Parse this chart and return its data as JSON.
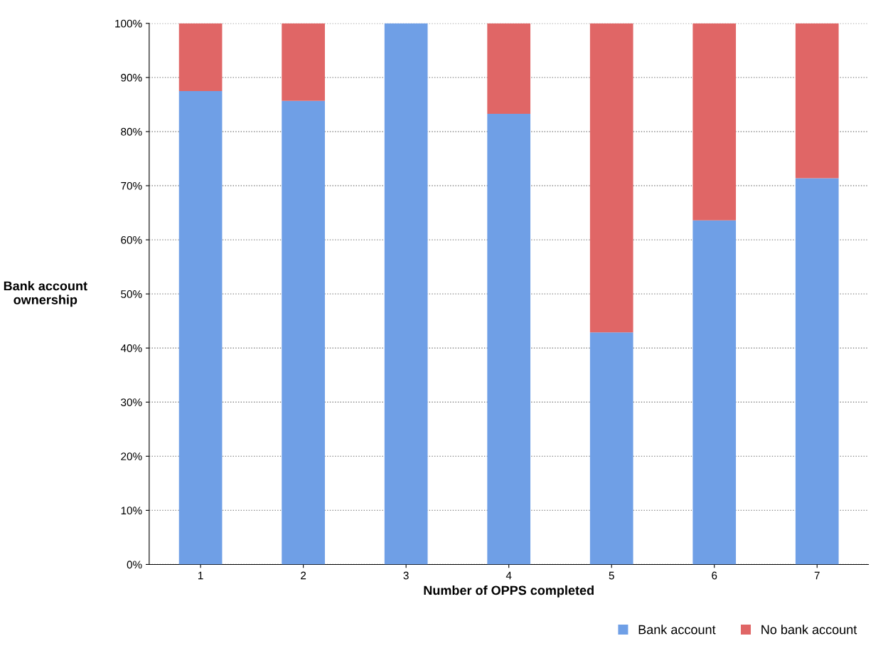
{
  "chart_data": {
    "type": "bar",
    "stacked": true,
    "xlabel": "Number of OPPS completed",
    "ylabel": "Bank account ownership",
    "categories": [
      "1",
      "2",
      "3",
      "4",
      "5",
      "6",
      "7"
    ],
    "series": [
      {
        "name": "Bank account",
        "color": "#6f9fe6",
        "values": [
          87.5,
          85.7,
          100,
          83.3,
          42.9,
          63.6,
          71.4
        ]
      },
      {
        "name": "No bank account",
        "color": "#e06666",
        "values": [
          12.5,
          14.3,
          0,
          16.7,
          57.1,
          36.4,
          28.6
        ]
      }
    ],
    "ylim": [
      0,
      100
    ],
    "yticks": [
      {
        "value": 0,
        "label": "0%"
      },
      {
        "value": 10,
        "label": "10%"
      },
      {
        "value": 20,
        "label": "20%"
      },
      {
        "value": 30,
        "label": "30%"
      },
      {
        "value": 40,
        "label": "40%"
      },
      {
        "value": 50,
        "label": "50%"
      },
      {
        "value": 60,
        "label": "60%"
      },
      {
        "value": 70,
        "label": "70%"
      },
      {
        "value": 80,
        "label": "80%"
      },
      {
        "value": 90,
        "label": "90%"
      },
      {
        "value": 100,
        "label": "100%"
      }
    ],
    "grid": "y",
    "legend": "bottom right"
  }
}
